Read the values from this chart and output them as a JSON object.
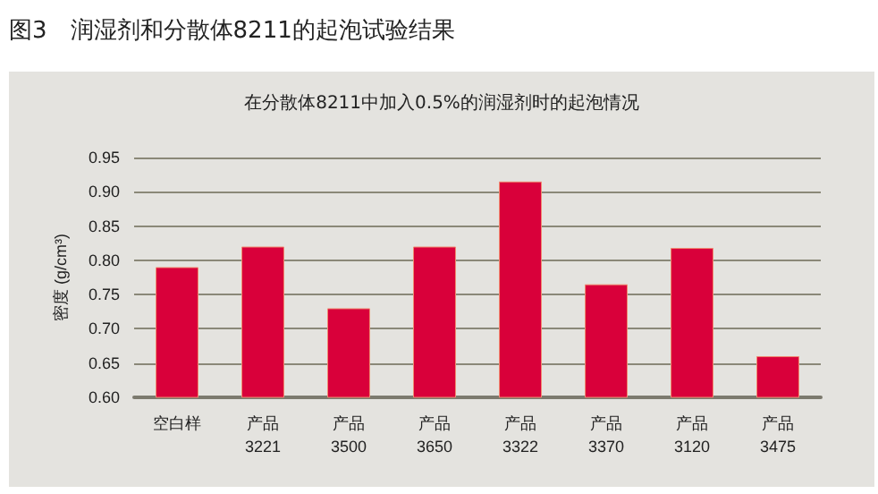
{
  "chart_data": {
    "type": "bar",
    "title": "图3　润湿剂和分散体8211的起泡试验结果",
    "subtitle": "在分散体8211中加入0.5%的润湿剂时的起泡情况",
    "ylabel": "密度 (g/cm³)",
    "categories": [
      "空白样",
      "产品3221",
      "产品3500",
      "产品3650",
      "产品3322",
      "产品3370",
      "产品3120",
      "产品3475"
    ],
    "values": [
      0.79,
      0.82,
      0.73,
      0.82,
      0.915,
      0.765,
      0.818,
      0.66
    ],
    "color": "#d9003a",
    "ylim": [
      0.6,
      0.95
    ],
    "yticks": [
      {
        "value": 0.6,
        "label": "0.60"
      },
      {
        "value": 0.65,
        "label": "0.65"
      },
      {
        "value": 0.7,
        "label": "0.70"
      },
      {
        "value": 0.75,
        "label": "0.75"
      },
      {
        "value": 0.8,
        "label": "0.80"
      },
      {
        "value": 0.85,
        "label": "0.85"
      },
      {
        "value": 0.9,
        "label": "0.90"
      },
      {
        "value": 0.95,
        "label": "0.95"
      }
    ],
    "grid": "y"
  }
}
